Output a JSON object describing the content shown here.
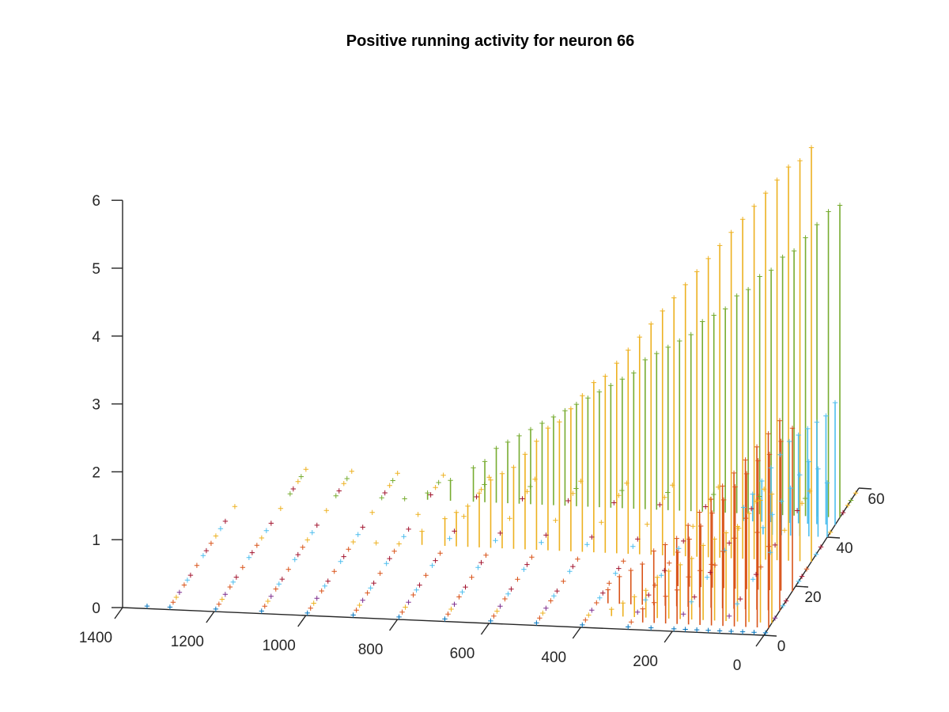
{
  "chart_data": {
    "type": "stem3",
    "title": "Positive running activity for neuron 66",
    "xlabel": "",
    "ylabel": "",
    "zlabel": "",
    "x_axis": {
      "ticks": [
        "0",
        "200",
        "400",
        "600",
        "800",
        "1000",
        "1200",
        "1400"
      ],
      "range": [
        0,
        1400
      ]
    },
    "y_axis": {
      "ticks": [
        "0",
        "20",
        "40",
        "60"
      ],
      "range": [
        0,
        60
      ]
    },
    "z_axis": {
      "ticks": [
        "0",
        "1",
        "2",
        "3",
        "4",
        "5",
        "6"
      ],
      "range": [
        0,
        6
      ]
    },
    "grid": false,
    "legend": "none",
    "colors": [
      "#0072BD",
      "#D95319",
      "#EDB120",
      "#7E2F8E",
      "#77AC30",
      "#4DBEEE",
      "#A2142F"
    ],
    "series": [
      {
        "y": 1,
        "color": "#0072BD",
        "x": [
          0,
          25,
          50,
          75,
          100,
          125,
          150,
          175,
          200,
          250,
          300,
          400,
          500,
          600,
          700,
          800,
          900,
          1000,
          1100,
          1200,
          1300,
          1350
        ],
        "z": [
          0,
          0,
          0,
          0,
          0,
          0,
          0,
          0,
          0,
          0,
          0,
          0,
          0,
          0,
          0,
          0,
          0,
          0,
          0,
          0,
          0,
          0
        ]
      },
      {
        "y": 3,
        "color": "#D95319",
        "x": [
          0,
          25,
          50,
          75,
          100,
          125,
          150,
          175,
          200,
          225,
          250,
          275,
          300,
          400,
          500,
          600,
          700,
          800,
          900,
          1000,
          1100,
          1200,
          1300
        ],
        "z": [
          1.2,
          1.4,
          1.6,
          1.3,
          1.1,
          0.9,
          0.8,
          0.7,
          0.5,
          0.4,
          0.3,
          0.2,
          0,
          0,
          0,
          0,
          0,
          0,
          0,
          0,
          0,
          0,
          0
        ]
      },
      {
        "y": 5,
        "color": "#EDB120",
        "x": [
          0,
          25,
          50,
          75,
          100,
          125,
          150,
          175,
          200,
          225,
          250,
          275,
          300,
          325,
          350,
          400,
          500,
          600,
          700,
          800,
          900,
          1000,
          1100,
          1200,
          1300
        ],
        "z": [
          1.9,
          1.8,
          1.6,
          1.4,
          1.3,
          1.2,
          1.1,
          0.9,
          0.8,
          0.7,
          0.6,
          0.4,
          0.3,
          0.2,
          0.1,
          0,
          0,
          0,
          0,
          0,
          0,
          0,
          0,
          0,
          0
        ]
      },
      {
        "y": 7,
        "color": "#7E2F8E",
        "x": [
          0,
          100,
          200,
          300,
          400,
          500,
          600,
          700,
          800,
          900,
          1000,
          1100,
          1200,
          1300
        ],
        "z": [
          0,
          0,
          0,
          0,
          0,
          0,
          0,
          0,
          0,
          0,
          0,
          0,
          0,
          0
        ]
      },
      {
        "y": 10,
        "color": "#D95319",
        "x": [
          0,
          25,
          50,
          75,
          100,
          125,
          150,
          175,
          200,
          225,
          250,
          275,
          300,
          325,
          350,
          375,
          400,
          500,
          600,
          700,
          800,
          900,
          1000,
          1100,
          1200,
          1300
        ],
        "z": [
          2.8,
          2.6,
          2.4,
          2.2,
          2.0,
          1.8,
          1.6,
          1.4,
          1.2,
          1.0,
          0.9,
          0.8,
          0.6,
          0.5,
          0.4,
          0.2,
          0,
          0,
          0,
          0,
          0,
          0,
          0,
          0,
          0,
          0
        ]
      },
      {
        "y": 12,
        "color": "#4DBEEE",
        "x": [
          0,
          100,
          200,
          300,
          400,
          500,
          600,
          700,
          800,
          900,
          1000,
          1100,
          1200,
          1300
        ],
        "z": [
          0,
          0,
          0,
          0,
          0,
          0,
          0,
          0,
          0,
          0,
          0,
          0,
          0,
          0
        ]
      },
      {
        "y": 14,
        "color": "#A2142F",
        "x": [
          0,
          100,
          200,
          300,
          400,
          500,
          600,
          700,
          800,
          900,
          1000,
          1100,
          1200,
          1300
        ],
        "z": [
          0,
          0,
          0,
          0,
          0,
          0,
          0,
          0,
          0,
          0,
          0,
          0,
          0,
          0
        ]
      },
      {
        "y": 18,
        "color": "#D95319",
        "x": [
          0,
          25,
          50,
          75,
          100,
          125,
          150,
          175,
          200,
          225,
          250,
          300,
          400,
          500,
          600,
          700,
          800,
          900,
          1000,
          1100,
          1200,
          1300
        ],
        "z": [
          2.4,
          2.2,
          2.0,
          1.9,
          1.7,
          1.5,
          1.3,
          1.1,
          0.9,
          0.7,
          0.5,
          0,
          0,
          0,
          0,
          0,
          0,
          0,
          0,
          0,
          0,
          0
        ]
      },
      {
        "y": 22,
        "color": "#4DBEEE",
        "x": [
          0,
          100,
          200,
          300,
          400,
          500,
          600,
          700,
          800,
          900,
          1000,
          1100,
          1200,
          1300
        ],
        "z": [
          0,
          0,
          0,
          0,
          0,
          0,
          0,
          0,
          0,
          0,
          0,
          0,
          0,
          0
        ]
      },
      {
        "y": 24,
        "color": "#A2142F",
        "x": [
          0,
          100,
          200,
          300,
          400,
          500,
          600,
          700,
          800,
          900,
          1000,
          1100,
          1200,
          1300
        ],
        "z": [
          0,
          0,
          0,
          0,
          0,
          0,
          0,
          0,
          0,
          0,
          0,
          0,
          0,
          0
        ]
      },
      {
        "y": 27,
        "color": "#D95319",
        "x": [
          0,
          100,
          200,
          300,
          400,
          500,
          600,
          700,
          800,
          900,
          1000,
          1100,
          1200,
          1300
        ],
        "z": [
          0,
          0,
          0,
          0,
          0,
          0,
          0,
          0,
          0,
          0,
          0,
          0,
          0,
          0
        ]
      },
      {
        "y": 30,
        "color": "#EDB120",
        "x": [
          0,
          25,
          50,
          75,
          100,
          125,
          150,
          175,
          200,
          225,
          250,
          275,
          300,
          325,
          350,
          375,
          400,
          425,
          450,
          475,
          500,
          525,
          550,
          575,
          600,
          625,
          650,
          675,
          700,
          725,
          750,
          775,
          800,
          850,
          900,
          950,
          1000,
          1100,
          1200,
          1300
        ],
        "z": [
          6.1,
          5.9,
          5.8,
          5.6,
          5.4,
          5.2,
          5.0,
          4.8,
          4.6,
          4.4,
          4.2,
          4.0,
          3.8,
          3.6,
          3.4,
          3.2,
          3.0,
          2.8,
          2.6,
          2.5,
          2.3,
          2.1,
          1.9,
          1.8,
          1.6,
          1.4,
          1.2,
          1.1,
          1.0,
          0.8,
          0.6,
          0.5,
          0.4,
          0.2,
          0,
          0,
          0,
          0,
          0,
          0
        ]
      },
      {
        "y": 33,
        "color": "#4DBEEE",
        "x": [
          0,
          100,
          200,
          300,
          400,
          500,
          600,
          700,
          800,
          900,
          1000,
          1100,
          1200,
          1300
        ],
        "z": [
          0,
          0,
          0,
          0,
          0,
          0,
          0,
          0,
          0,
          0,
          0,
          0,
          0,
          0
        ]
      },
      {
        "y": 36,
        "color": "#A2142F",
        "x": [
          0,
          100,
          200,
          300,
          400,
          500,
          600,
          700,
          800,
          900,
          1000,
          1100,
          1200,
          1300
        ],
        "z": [
          0,
          0,
          0,
          0,
          0,
          0,
          0,
          0,
          0,
          0,
          0,
          0,
          0,
          0
        ]
      },
      {
        "y": 40,
        "color": "#4DBEEE",
        "x": [
          0,
          20,
          40,
          60,
          80,
          100,
          120,
          140
        ],
        "z": [
          0.8,
          1.0,
          1.1,
          0.9,
          0.7,
          0.5,
          0.3,
          0.1
        ]
      },
      {
        "y": 42,
        "color": "#EDB120",
        "x": [
          0,
          100,
          200,
          300,
          400,
          500,
          600,
          700,
          800,
          900,
          1000,
          1100,
          1200,
          1300
        ],
        "z": [
          0,
          0,
          0,
          0,
          0,
          0,
          0,
          0,
          0,
          0,
          0,
          0,
          0,
          0
        ]
      },
      {
        "y": 45,
        "color": "#4DBEEE",
        "x": [
          0,
          20,
          40,
          60,
          80,
          100,
          120,
          140,
          160,
          180,
          200
        ],
        "z": [
          1.8,
          1.6,
          1.5,
          1.4,
          1.3,
          1.2,
          1.0,
          0.8,
          0.6,
          0.4,
          0.2
        ]
      },
      {
        "y": 48,
        "color": "#77AC30",
        "x": [
          0,
          25,
          50,
          75,
          100,
          125,
          150,
          175,
          200,
          225,
          250,
          275,
          300,
          325,
          350,
          375,
          400,
          425,
          450,
          475,
          500,
          525,
          550,
          575,
          600,
          625,
          650,
          675,
          700,
          725,
          750,
          775,
          800,
          850,
          900,
          950,
          1000,
          1100,
          1200
        ],
        "z": [
          4.6,
          4.5,
          4.3,
          4.1,
          3.9,
          3.8,
          3.6,
          3.5,
          3.3,
          3.2,
          3.0,
          2.9,
          2.8,
          2.6,
          2.5,
          2.4,
          2.3,
          2.2,
          2.0,
          1.9,
          1.8,
          1.7,
          1.6,
          1.5,
          1.4,
          1.3,
          1.2,
          1.1,
          1.0,
          0.9,
          0.8,
          0.6,
          0.5,
          0.3,
          0.1,
          0,
          0,
          0,
          0
        ]
      },
      {
        "y": 50,
        "color": "#A2142F",
        "x": [
          0,
          100,
          200,
          300,
          400,
          500,
          600,
          700,
          800,
          900,
          1000,
          1100,
          1200
        ],
        "z": [
          0,
          0,
          0,
          0,
          0,
          0,
          0,
          0,
          0,
          0,
          0,
          0,
          0
        ]
      },
      {
        "y": 53,
        "color": "#EDB120",
        "x": [
          0,
          100,
          200,
          300,
          400,
          500,
          600,
          700,
          800,
          900,
          1000,
          1100,
          1200
        ],
        "z": [
          0,
          0,
          0,
          0,
          0,
          0,
          0,
          0,
          0,
          0,
          0,
          0,
          0
        ]
      },
      {
        "y": 55,
        "color": "#77AC30",
        "x": [
          0,
          100,
          200,
          300,
          400,
          500,
          600,
          700,
          800,
          900,
          1000,
          1100,
          1200
        ],
        "z": [
          0,
          0,
          0,
          0,
          0,
          0,
          0,
          0,
          0,
          0,
          0,
          0,
          0
        ]
      },
      {
        "y": 58,
        "color": "#EDB120",
        "x": [
          0,
          100,
          200,
          300,
          400,
          500,
          600,
          700,
          800,
          900,
          1000,
          1100,
          1200
        ],
        "z": [
          0,
          0,
          0,
          0,
          0,
          0,
          0,
          0,
          0,
          0,
          0,
          0,
          0
        ]
      }
    ]
  }
}
